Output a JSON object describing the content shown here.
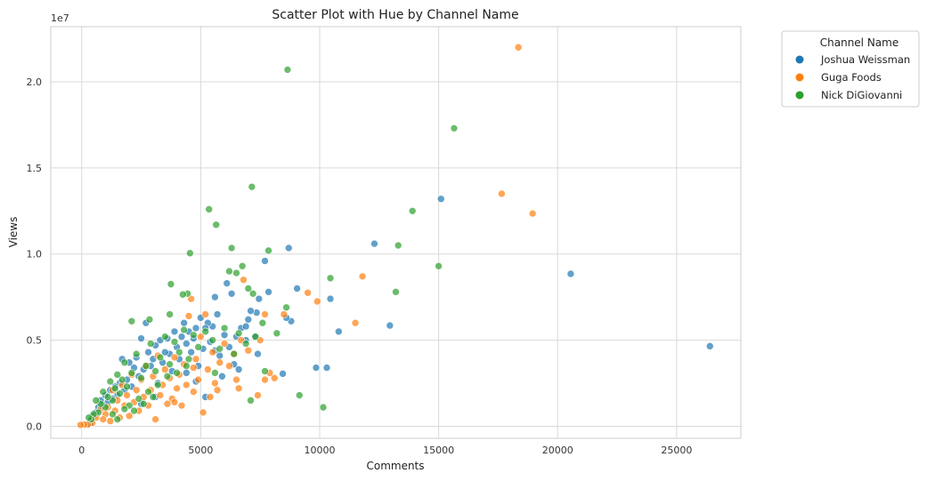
{
  "chart_data": {
    "type": "scatter",
    "title": "Scatter Plot with Hue by Channel Name",
    "xlabel": "Comments",
    "ylabel": "Views",
    "y_offset_label": "1e7",
    "xlim": [
      -1300,
      27700
    ],
    "ylim": [
      -700000,
      23200000
    ],
    "x_ticks": [
      0,
      5000,
      10000,
      15000,
      20000,
      25000
    ],
    "x_tick_labels": [
      "0",
      "5000",
      "10000",
      "15000",
      "20000",
      "25000"
    ],
    "y_ticks": [
      0,
      5000000,
      10000000,
      15000000,
      20000000
    ],
    "y_tick_labels": [
      "0.0",
      "0.5",
      "1.0",
      "1.5",
      "2.0"
    ],
    "grid": true,
    "legend": {
      "title": "Channel Name",
      "placement": "outside-top-right"
    },
    "series": [
      {
        "name": "Joshua Weissman",
        "color": "#1f77b4",
        "points": [
          [
            26400,
            4650000
          ],
          [
            20550,
            8850000
          ],
          [
            15100,
            13200000
          ],
          [
            12950,
            5850000
          ],
          [
            12300,
            10600000
          ],
          [
            10800,
            5500000
          ],
          [
            10450,
            7400000
          ],
          [
            10300,
            3400000
          ],
          [
            9850,
            3400000
          ],
          [
            9050,
            8000000
          ],
          [
            8800,
            6100000
          ],
          [
            8700,
            10350000
          ],
          [
            8600,
            6300000
          ],
          [
            8450,
            3050000
          ],
          [
            7850,
            7800000
          ],
          [
            7700,
            9600000
          ],
          [
            7450,
            7400000
          ],
          [
            7350,
            6600000
          ],
          [
            7100,
            6700000
          ],
          [
            7000,
            6200000
          ],
          [
            6900,
            5000000
          ],
          [
            6700,
            5700000
          ],
          [
            6500,
            5200000
          ],
          [
            6300,
            7700000
          ],
          [
            6200,
            4600000
          ],
          [
            6100,
            8300000
          ],
          [
            6000,
            5300000
          ],
          [
            5800,
            4100000
          ],
          [
            5700,
            6500000
          ],
          [
            5600,
            7500000
          ],
          [
            5500,
            5800000
          ],
          [
            5400,
            4900000
          ],
          [
            5300,
            6000000
          ],
          [
            5200,
            5700000
          ],
          [
            5100,
            4500000
          ],
          [
            5000,
            6300000
          ],
          [
            4900,
            3500000
          ],
          [
            4800,
            5700000
          ],
          [
            4700,
            5100000
          ],
          [
            4600,
            4300000
          ],
          [
            4500,
            5500000
          ],
          [
            4400,
            4800000
          ],
          [
            4300,
            6000000
          ],
          [
            4200,
            5200000
          ],
          [
            4100,
            3900000
          ],
          [
            4000,
            4600000
          ],
          [
            3900,
            5500000
          ],
          [
            3800,
            3200000
          ],
          [
            3700,
            4200000
          ],
          [
            3600,
            5100000
          ],
          [
            3500,
            4300000
          ],
          [
            3400,
            3700000
          ],
          [
            3300,
            5000000
          ],
          [
            3200,
            2500000
          ],
          [
            3100,
            4700000
          ],
          [
            3000,
            3900000
          ],
          [
            2900,
            3500000
          ],
          [
            2800,
            4300000
          ],
          [
            2700,
            6000000
          ],
          [
            2600,
            3300000
          ],
          [
            2500,
            5100000
          ],
          [
            2400,
            2900000
          ],
          [
            2300,
            4000000
          ],
          [
            2200,
            3400000
          ],
          [
            2100,
            2300000
          ],
          [
            2000,
            3700000
          ],
          [
            1900,
            2700000
          ],
          [
            1800,
            2100000
          ],
          [
            1700,
            3900000
          ],
          [
            1600,
            2500000
          ],
          [
            1500,
            1800000
          ],
          [
            1400,
            2300000
          ],
          [
            1300,
            1600000
          ],
          [
            1200,
            2100000
          ],
          [
            1100,
            1400000
          ],
          [
            1000,
            1800000
          ],
          [
            900,
            1200000
          ],
          [
            800,
            1500000
          ],
          [
            700,
            1100000
          ],
          [
            600,
            800000
          ],
          [
            500,
            600000
          ],
          [
            400,
            300000
          ],
          [
            350,
            150000
          ],
          [
            6400,
            3600000
          ],
          [
            7300,
            5200000
          ],
          [
            5900,
            2900000
          ],
          [
            4800,
            2600000
          ],
          [
            6600,
            3300000
          ],
          [
            3100,
            1700000
          ],
          [
            2500,
            1300000
          ],
          [
            5200,
            1700000
          ],
          [
            7400,
            4200000
          ],
          [
            6900,
            5800000
          ],
          [
            5600,
            4400000
          ],
          [
            4400,
            3100000
          ]
        ]
      },
      {
        "name": "Guga Foods",
        "color": "#ff7f0e",
        "points": [
          [
            18350,
            22000000
          ],
          [
            17650,
            13500000
          ],
          [
            18950,
            12350000
          ],
          [
            11800,
            8700000
          ],
          [
            11500,
            6000000
          ],
          [
            9900,
            7250000
          ],
          [
            9500,
            7750000
          ],
          [
            8500,
            6500000
          ],
          [
            8100,
            2800000
          ],
          [
            7900,
            3100000
          ],
          [
            7700,
            2700000
          ],
          [
            7400,
            1800000
          ],
          [
            7700,
            6500000
          ],
          [
            7500,
            5000000
          ],
          [
            7000,
            4400000
          ],
          [
            6800,
            8500000
          ],
          [
            6700,
            5000000
          ],
          [
            6600,
            2200000
          ],
          [
            6400,
            4200000
          ],
          [
            6200,
            3500000
          ],
          [
            6000,
            4800000
          ],
          [
            5800,
            3700000
          ],
          [
            5600,
            2500000
          ],
          [
            5500,
            4300000
          ],
          [
            5400,
            1700000
          ],
          [
            5300,
            3300000
          ],
          [
            5200,
            6500000
          ],
          [
            5100,
            800000
          ],
          [
            5000,
            5200000
          ],
          [
            4900,
            2700000
          ],
          [
            4800,
            3900000
          ],
          [
            4700,
            2000000
          ],
          [
            4600,
            7400000
          ],
          [
            4500,
            6400000
          ],
          [
            4400,
            2400000
          ],
          [
            4300,
            3600000
          ],
          [
            4200,
            1200000
          ],
          [
            4100,
            3000000
          ],
          [
            4000,
            2200000
          ],
          [
            3900,
            4000000
          ],
          [
            3800,
            1600000
          ],
          [
            3700,
            2800000
          ],
          [
            3600,
            1300000
          ],
          [
            3500,
            3300000
          ],
          [
            3400,
            2400000
          ],
          [
            3300,
            1800000
          ],
          [
            3200,
            4100000
          ],
          [
            3100,
            400000
          ],
          [
            3000,
            2900000
          ],
          [
            2900,
            2100000
          ],
          [
            2800,
            1200000
          ],
          [
            2700,
            3500000
          ],
          [
            2600,
            1700000
          ],
          [
            2500,
            2700000
          ],
          [
            2400,
            900000
          ],
          [
            2300,
            2100000
          ],
          [
            2200,
            1400000
          ],
          [
            2100,
            3000000
          ],
          [
            2000,
            600000
          ],
          [
            1900,
            1800000
          ],
          [
            1800,
            1200000
          ],
          [
            1700,
            2400000
          ],
          [
            1600,
            500000
          ],
          [
            1500,
            1500000
          ],
          [
            1400,
            900000
          ],
          [
            1300,
            2100000
          ],
          [
            1200,
            300000
          ],
          [
            1100,
            1100000
          ],
          [
            1000,
            700000
          ],
          [
            900,
            400000
          ],
          [
            800,
            1000000
          ],
          [
            600,
            500000
          ],
          [
            450,
            200000
          ],
          [
            250,
            100000
          ],
          [
            100,
            100000
          ],
          [
            -50,
            80000
          ],
          [
            3900,
            1400000
          ],
          [
            4700,
            3400000
          ],
          [
            5700,
            2100000
          ],
          [
            6500,
            2700000
          ]
        ]
      },
      {
        "name": "Nick DiGiovanni",
        "color": "#2ca02c",
        "points": [
          [
            8650,
            20700000
          ],
          [
            15650,
            17300000
          ],
          [
            13900,
            12500000
          ],
          [
            13300,
            10500000
          ],
          [
            15000,
            9300000
          ],
          [
            13200,
            7800000
          ],
          [
            10450,
            8600000
          ],
          [
            10150,
            1100000
          ],
          [
            9150,
            1800000
          ],
          [
            8600,
            6900000
          ],
          [
            8200,
            5400000
          ],
          [
            7850,
            10200000
          ],
          [
            7700,
            3200000
          ],
          [
            7150,
            13900000
          ],
          [
            7200,
            7700000
          ],
          [
            7000,
            8000000
          ],
          [
            6750,
            9300000
          ],
          [
            6500,
            8900000
          ],
          [
            6300,
            10350000
          ],
          [
            6200,
            9000000
          ],
          [
            5650,
            11700000
          ],
          [
            5350,
            12600000
          ],
          [
            4550,
            10050000
          ],
          [
            4450,
            7700000
          ],
          [
            4250,
            7650000
          ],
          [
            3750,
            8250000
          ],
          [
            3700,
            6500000
          ],
          [
            2850,
            6200000
          ],
          [
            2100,
            6100000
          ],
          [
            7100,
            1500000
          ],
          [
            7600,
            6000000
          ],
          [
            7300,
            5200000
          ],
          [
            6900,
            4800000
          ],
          [
            6600,
            5400000
          ],
          [
            6400,
            4200000
          ],
          [
            6000,
            5700000
          ],
          [
            5800,
            4500000
          ],
          [
            5500,
            5000000
          ],
          [
            5200,
            5500000
          ],
          [
            4900,
            4600000
          ],
          [
            4700,
            5300000
          ],
          [
            4500,
            3900000
          ],
          [
            4300,
            5600000
          ],
          [
            4100,
            4300000
          ],
          [
            3900,
            4900000
          ],
          [
            3700,
            3600000
          ],
          [
            3500,
            5200000
          ],
          [
            3300,
            4000000
          ],
          [
            3100,
            3200000
          ],
          [
            2900,
            4800000
          ],
          [
            2700,
            3500000
          ],
          [
            2500,
            2800000
          ],
          [
            2300,
            4200000
          ],
          [
            2100,
            3100000
          ],
          [
            1900,
            2300000
          ],
          [
            1800,
            3700000
          ],
          [
            1700,
            2700000
          ],
          [
            1600,
            1900000
          ],
          [
            1500,
            3000000
          ],
          [
            1400,
            2200000
          ],
          [
            1300,
            1500000
          ],
          [
            1200,
            2600000
          ],
          [
            1100,
            1700000
          ],
          [
            1000,
            1100000
          ],
          [
            900,
            2000000
          ],
          [
            800,
            1300000
          ],
          [
            700,
            800000
          ],
          [
            600,
            1500000
          ],
          [
            500,
            700000
          ],
          [
            400,
            400000
          ],
          [
            300,
            500000
          ],
          [
            1500,
            400000
          ],
          [
            2000,
            1200000
          ],
          [
            2400,
            1600000
          ],
          [
            2800,
            2000000
          ],
          [
            3200,
            2400000
          ],
          [
            3600,
            2900000
          ],
          [
            4000,
            3100000
          ],
          [
            4400,
            3500000
          ],
          [
            5600,
            3100000
          ],
          [
            2200,
            900000
          ],
          [
            2600,
            1300000
          ],
          [
            3000,
            1700000
          ],
          [
            1800,
            1000000
          ],
          [
            1300,
            700000
          ]
        ]
      }
    ]
  }
}
